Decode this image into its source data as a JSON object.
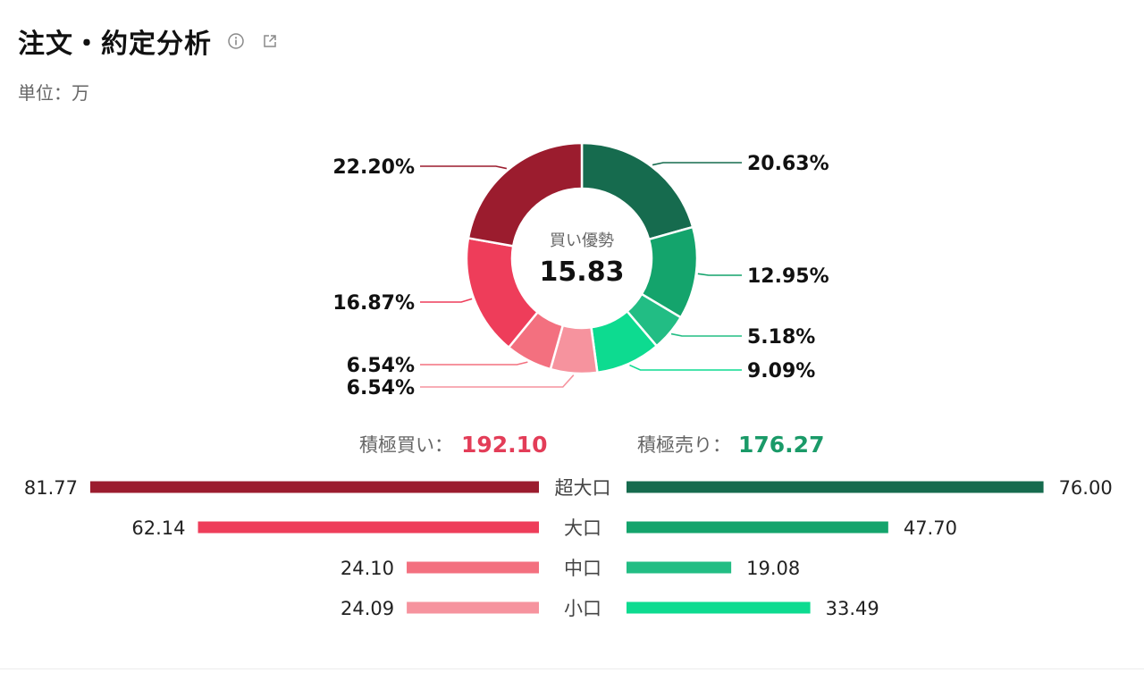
{
  "header": {
    "title": "注文・約定分析",
    "info_icon": "info-icon",
    "share_icon": "share-icon"
  },
  "unit_label": "単位：万",
  "colors": {
    "buy_super_large": "#9b1c2e",
    "buy_large": "#ee3d5a",
    "buy_medium": "#f3707f",
    "buy_small": "#f6939e",
    "sell_super_large": "#166b4e",
    "sell_large": "#14a46c",
    "sell_medium": "#22bd84",
    "sell_small": "#0ddb90",
    "buy_text": "#e33d58",
    "sell_text": "#1a9a68",
    "label_line_text": "#111111"
  },
  "chart_data": [
    {
      "type": "pie",
      "center_label": "買い優勢",
      "center_value": "15.83",
      "slices": [
        {
          "label": "20.63%",
          "value": 20.63,
          "color": "#166b4e",
          "key": "sell_super_large"
        },
        {
          "label": "12.95%",
          "value": 12.95,
          "color": "#14a46c",
          "key": "sell_large"
        },
        {
          "label": "5.18%",
          "value": 5.18,
          "color": "#22bd84",
          "key": "sell_medium"
        },
        {
          "label": "9.09%",
          "value": 9.09,
          "color": "#0ddb90",
          "key": "sell_small"
        },
        {
          "label": "6.54%",
          "value": 6.54,
          "color": "#f6939e",
          "key": "buy_small"
        },
        {
          "label": "6.54%",
          "value": 6.54,
          "color": "#f3707f",
          "key": "buy_medium"
        },
        {
          "label": "16.87%",
          "value": 16.87,
          "color": "#ee3d5a",
          "key": "buy_large"
        },
        {
          "label": "22.20%",
          "value": 22.2,
          "color": "#9b1c2e",
          "key": "buy_super_large"
        }
      ]
    },
    {
      "type": "bar",
      "buy_total_label": "積極買い：",
      "buy_total_value": "192.10",
      "sell_total_label": "積極売り：",
      "sell_total_value": "176.27",
      "categories": [
        "超大口",
        "大口",
        "中口",
        "小口"
      ],
      "series": [
        {
          "side": "buy",
          "values": [
            81.77,
            62.14,
            24.1,
            24.09
          ],
          "labels": [
            "81.77",
            "62.14",
            "24.10",
            "24.09"
          ],
          "colors": [
            "#9b1c2e",
            "#ee3d5a",
            "#f3707f",
            "#f6939e"
          ]
        },
        {
          "side": "sell",
          "values": [
            76.0,
            47.7,
            19.08,
            33.49
          ],
          "labels": [
            "76.00",
            "47.70",
            "19.08",
            "33.49"
          ],
          "colors": [
            "#166b4e",
            "#14a46c",
            "#22bd84",
            "#0ddb90"
          ]
        }
      ]
    }
  ]
}
